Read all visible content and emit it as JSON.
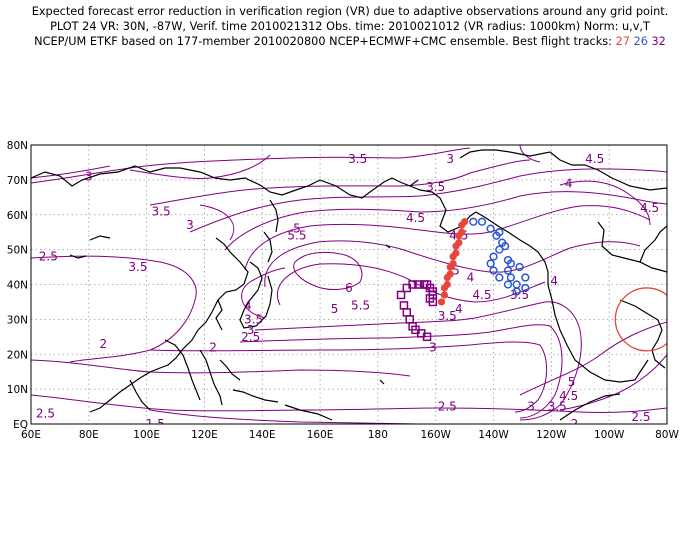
{
  "header": {
    "line1": "Expected forecast error reduction in verification region (VR) due to adaptive observations around any grid point.",
    "line2": "PLOT 24 VR: 30N, -87W, Verif. time 2010021312 Obs. time: 2010021012 (VR radius: 1000km) Norm: u,v,T",
    "line3_prefix": "NCEP/UM ETKF based on 177-member 2010020800 NCEP+ECMWF+CMC ensemble. Best flight tracks:",
    "track_ids": [
      "27",
      "26",
      "32"
    ]
  },
  "map": {
    "lat_labels": [
      "80N",
      "70N",
      "60N",
      "50N",
      "40N",
      "30N",
      "20N",
      "10N",
      "EQ"
    ],
    "lon_labels": [
      "60E",
      "80E",
      "100E",
      "120E",
      "140E",
      "160E",
      "180",
      "160W",
      "140W",
      "120W",
      "100W",
      "80W"
    ],
    "contour_labels": [
      "3",
      "3.5",
      "4",
      "4.5",
      "5",
      "5.5",
      "6",
      "2.5",
      "2",
      "1.5"
    ],
    "colors": {
      "contour": "#800080",
      "coast": "#000000",
      "grid": "#9a9a9a",
      "track_27": "#e8453c",
      "track_26": "#2a57d8",
      "track_32": "#800080",
      "verification_region": "#e8453c"
    },
    "verification_region": {
      "center_lat": 30,
      "center_lon": -87,
      "radius_km": 1000
    },
    "tracks": {
      "27": {
        "marker": "filled-circle",
        "points": [
          [
            58,
            -150
          ],
          [
            55,
            -151
          ],
          [
            52,
            -152
          ],
          [
            49,
            -153
          ],
          [
            46,
            -154
          ],
          [
            43,
            -155
          ],
          [
            40,
            -156
          ],
          [
            37,
            -157
          ],
          [
            35,
            -158
          ],
          [
            57,
            -151
          ],
          [
            54,
            -152
          ],
          [
            51,
            -153
          ],
          [
            48,
            -154
          ],
          [
            45,
            -155
          ],
          [
            42,
            -156
          ],
          [
            39,
            -157
          ]
        ]
      },
      "26": {
        "marker": "open-circle",
        "points": [
          [
            58,
            -147
          ],
          [
            58,
            -144
          ],
          [
            56,
            -141
          ],
          [
            54,
            -139
          ],
          [
            52,
            -137
          ],
          [
            50,
            -138
          ],
          [
            48,
            -140
          ],
          [
            46,
            -141
          ],
          [
            44,
            -140
          ],
          [
            42,
            -138
          ],
          [
            40,
            -135
          ],
          [
            38,
            -132
          ],
          [
            39,
            -129
          ],
          [
            42,
            -129
          ],
          [
            45,
            -131
          ],
          [
            46,
            -134
          ],
          [
            44,
            -135
          ],
          [
            42,
            -134
          ],
          [
            40,
            -132
          ],
          [
            55,
            -138
          ],
          [
            51,
            -136
          ],
          [
            47,
            -135
          ]
        ]
      },
      "32": {
        "marker": "open-square",
        "points": [
          [
            37,
            -172
          ],
          [
            39,
            -170
          ],
          [
            40,
            -168
          ],
          [
            40,
            -166
          ],
          [
            40,
            -164
          ],
          [
            39,
            -162
          ],
          [
            37,
            -161
          ],
          [
            35,
            -161
          ],
          [
            34,
            -171
          ],
          [
            32,
            -170
          ],
          [
            30,
            -169
          ],
          [
            28,
            -168
          ],
          [
            27,
            -167
          ],
          [
            26,
            -165
          ],
          [
            25,
            -163
          ],
          [
            40,
            -163
          ],
          [
            38,
            -161
          ],
          [
            36,
            -162
          ]
        ]
      }
    }
  }
}
